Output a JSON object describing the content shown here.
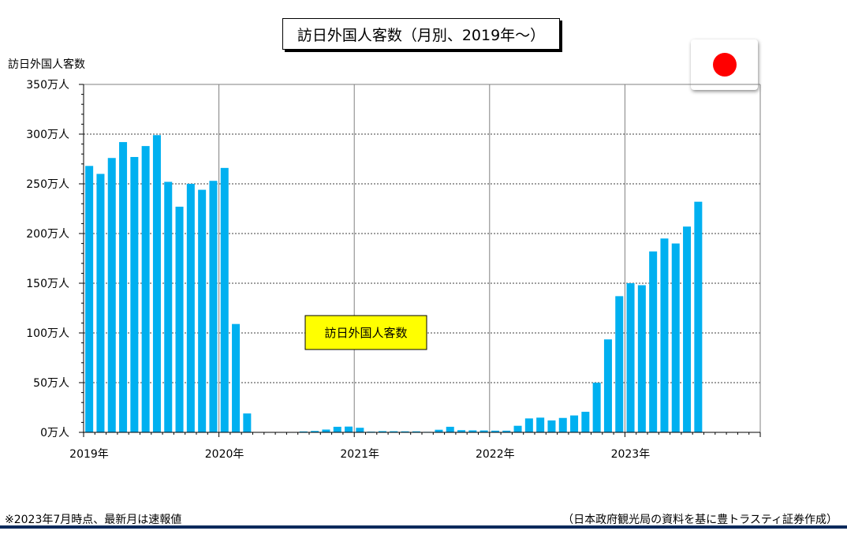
{
  "title": "訪日外国人客数（月別、2019年～）",
  "colors": {
    "bar": "#00b0f0",
    "legend_bg": "#ffff00",
    "flag_red": "#ff0000",
    "rule": "#0b2a5c"
  },
  "footnote_left": "※2023年7月時点、最新月は速報値",
  "footnote_right": "（日本政府観光局の資料を基に豊トラスティ証券作成）",
  "chart_data": {
    "type": "bar",
    "ylabel": "訪日外国人客数",
    "legend": "訪日外国人客数",
    "ylim": [
      0,
      350
    ],
    "yunit": "万人",
    "yticks": [
      "0万人",
      "50万人",
      "100万人",
      "150万人",
      "200万人",
      "250万人",
      "300万人",
      "350万人"
    ],
    "year_labels": [
      "2019年",
      "2020年",
      "2021年",
      "2022年",
      "2023年"
    ],
    "months_total": 60,
    "series": [
      {
        "name": "訪日外国人客数",
        "values": [
          268,
          260,
          276,
          292,
          277,
          288,
          299,
          252,
          227,
          250,
          244,
          253,
          266,
          109,
          19,
          0.3,
          0.2,
          0.3,
          0.4,
          0.9,
          1.4,
          2.8,
          5.6,
          5.8,
          4.6,
          0.7,
          1.2,
          1.1,
          1.0,
          1.0,
          0.5,
          2.6,
          5.6,
          2.2,
          2.0,
          1.9,
          1.7,
          1.7,
          6.6,
          14,
          14.8,
          12.0,
          14.5,
          17.0,
          20.7,
          49.9,
          93.5,
          137,
          150,
          148,
          182,
          195,
          190,
          207,
          232
        ]
      }
    ]
  }
}
